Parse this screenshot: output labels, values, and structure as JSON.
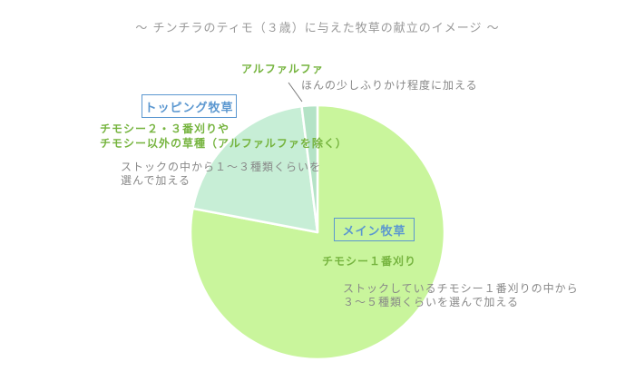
{
  "title": "～ チンチラのティモ（３歳）に与えた牧草の献立のイメージ ～",
  "annotations": {
    "alfalfa_label": "アルファルファ",
    "alfalfa_note": "ほんの少しふりかけ程度に加える",
    "topping_box_label": "トッピング牧草",
    "topping_desc_line1": "チモシー２・３番刈りや",
    "topping_desc_line2": "チモシー以外の草種（アルファルファを除く）",
    "topping_note_line1": "ストックの中から１～３種類くらいを",
    "topping_note_line2": "選んで加える",
    "main_box_label": "メイン牧草",
    "main_desc": "チモシー１番刈り",
    "main_note_line1": "ストックしているチモシー１番刈りの中から",
    "main_note_line2": "３～５種類くらいを選んで加える"
  },
  "colors": {
    "title_gray": "#999999",
    "note_gray": "#888888",
    "label_green": "#76b43f",
    "label_blue": "#5b97d0",
    "slice_main": "#c9f59c",
    "slice_topping": "#c7eed6",
    "slice_alfalfa": "#b4e3c6",
    "separator": "#ffffff",
    "pointer_line": "#777777",
    "background": "#ffffff"
  },
  "chart_data": {
    "type": "pie",
    "title": "～ チンチラのティモ（３歳）に与えた牧草の献立のイメージ ～",
    "direction": "clockwise",
    "start_angle_deg": 0,
    "legend_position": "none",
    "slices": [
      {
        "id": "main",
        "label": "メイン牧草",
        "sublabel": "チモシー１番刈り",
        "note": "ストックしているチモシー１番刈りの中から３～５種類くらいを選んで加える",
        "value_pct": 78,
        "color": "#c9f59c"
      },
      {
        "id": "topping",
        "label": "トッピング牧草",
        "sublabel": "チモシー２・３番刈りやチモシー以外の草種（アルファルファを除く）",
        "note": "ストックの中から１～３種類くらいを選んで加える",
        "value_pct": 20,
        "color": "#c7eed6"
      },
      {
        "id": "alfalfa",
        "label": "アルファルファ",
        "note": "ほんの少しふりかけ程度に加える",
        "value_pct": 2,
        "color": "#b4e3c6"
      }
    ]
  }
}
